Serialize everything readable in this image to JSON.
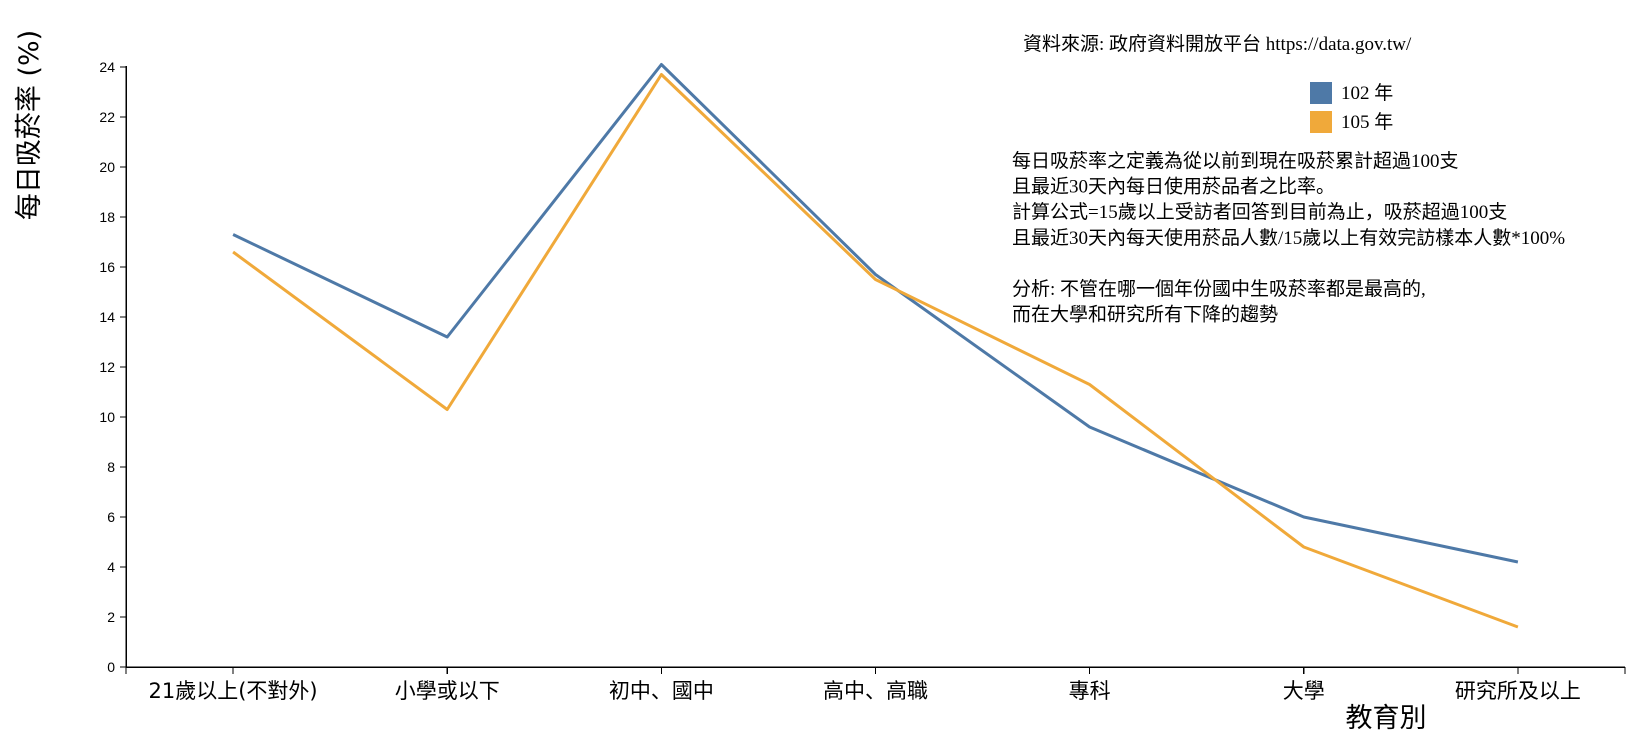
{
  "chart_data": {
    "type": "line",
    "categories": [
      "21歲以上(不對外)",
      "小學或以下",
      "初中、國中",
      "高中、高職",
      "專科",
      "大學",
      "研究所及以上"
    ],
    "series": [
      {
        "name": "102 年",
        "color": "#4e79a7",
        "values": [
          17.3,
          13.2,
          24.1,
          15.7,
          9.6,
          6.0,
          4.2
        ]
      },
      {
        "name": "105 年",
        "color": "#f0a93a",
        "values": [
          16.6,
          10.3,
          23.7,
          15.5,
          11.3,
          4.8,
          1.6
        ]
      }
    ],
    "xlabel": "教育別",
    "ylabel": "每日吸菸率 (%)",
    "ylim": [
      0,
      24
    ],
    "yticks": [
      0,
      2,
      4,
      6,
      8,
      10,
      12,
      14,
      16,
      18,
      20,
      22,
      24
    ],
    "grid": false,
    "legend_position": "top-right",
    "source": "資料來源: 政府資料開放平台 https://data.gov.tw/",
    "notes": [
      "每日吸菸率之定義為從以前到現在吸菸累計超過100支",
      "且最近30天內每日使用菸品者之比率。",
      "計算公式=15歲以上受訪者回答到目前為止，吸菸超過100支",
      "且最近30天內每天使用菸品人數/15歲以上有效完訪樣本人數*100%",
      "",
      "分析: 不管在哪一個年份國中生吸菸率都是最高的,",
      "而在大學和研究所有下降的趨勢"
    ]
  }
}
